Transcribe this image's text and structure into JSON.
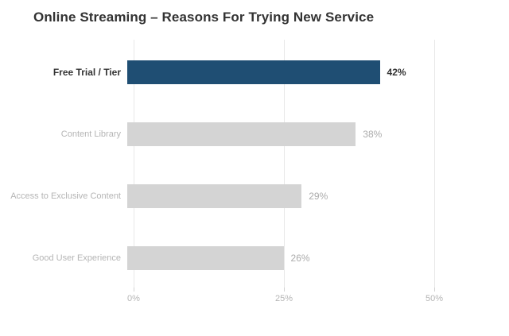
{
  "chart_data": {
    "type": "bar",
    "orientation": "horizontal",
    "title": "Online Streaming – Reasons For Trying New Service",
    "categories": [
      "Free Trial / Tier",
      "Content Library",
      "Access to Exclusive Content",
      "Good User Experience"
    ],
    "values": [
      42,
      38,
      29,
      26
    ],
    "value_labels": [
      "42%",
      "38%",
      "29%",
      "26%"
    ],
    "highlighted_index": 0,
    "xlabel": "",
    "ylabel": "",
    "xlim": [
      0,
      50
    ],
    "x_ticks": [
      {
        "label": "0%",
        "value": 0
      },
      {
        "label": "25%",
        "value": 25
      },
      {
        "label": "50%",
        "value": 50
      }
    ],
    "grid": true,
    "legend": null,
    "colors": {
      "highlight_bar": "#1F4E73",
      "default_bar": "#D4D4D4",
      "highlight_text": "#333333",
      "muted_text": "#B5B5B5",
      "gridline": "#E8E8E8",
      "tick": "#D2D2D2",
      "title": "#333333",
      "background": "#FFFFFF"
    }
  }
}
